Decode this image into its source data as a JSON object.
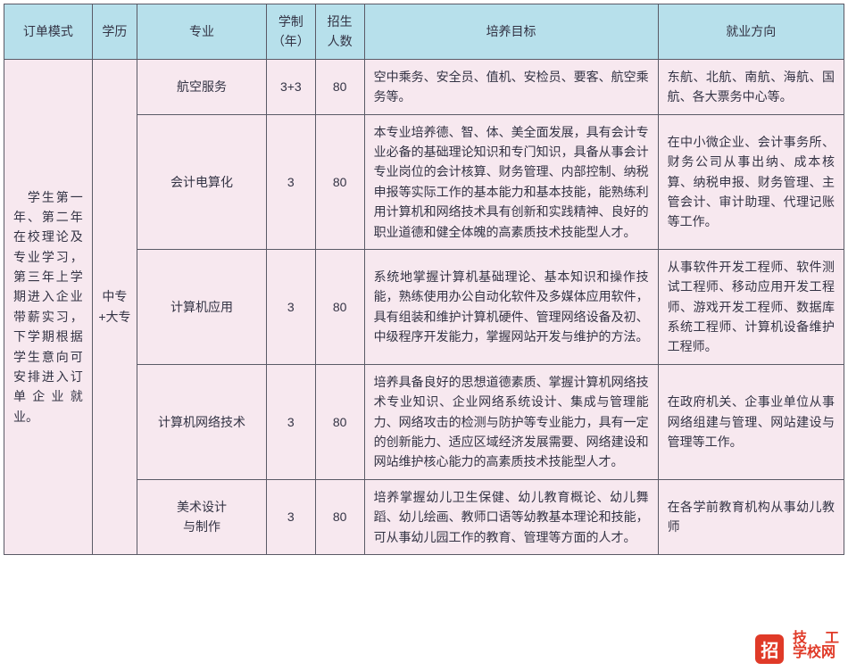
{
  "colors": {
    "header_bg": "#b7e0eb",
    "cell_bg": "#f7e8ef",
    "border": "#5a5a66",
    "text": "#333344",
    "watermark_red": "#e03a28"
  },
  "headers": {
    "mode": "订单模式",
    "edu": "学历",
    "major": "专业",
    "years": "学制\n（年）",
    "num": "招生\n人数",
    "goal": "培养目标",
    "career": "就业方向"
  },
  "mode_text": "　学生第一年、第二年在校理论及专业学习，第三年上学期进入企业带薪实习，下学期根据学生意向可安排进入订单企业就业。",
  "edu_text": "中专+大专",
  "rows": [
    {
      "major": "航空服务",
      "years": "3+3",
      "num": "80",
      "goal": "空中乘务、安全员、值机、安检员、要客、航空乘务等。",
      "career": "东航、北航、南航、海航、国航、各大票务中心等。"
    },
    {
      "major": "会计电算化",
      "years": "3",
      "num": "80",
      "goal": "本专业培养德、智、体、美全面发展，具有会计专业必备的基础理论知识和专门知识，具备从事会计专业岗位的会计核算、财务管理、内部控制、纳税申报等实际工作的基本能力和基本技能，能熟练利用计算机和网络技术具有创新和实践精神、良好的职业道德和健全体魄的高素质技术技能型人才。",
      "career": "在中小微企业、会计事务所、财务公司从事出纳、成本核算、纳税申报、财务管理、主管会计、审计助理、代理记账等工作。"
    },
    {
      "major": "计算机应用",
      "years": "3",
      "num": "80",
      "goal": "系统地掌握计算机基础理论、基本知识和操作技能，熟练使用办公自动化软件及多媒体应用软件，具有组装和维护计算机硬件、管理网络设备及初、中级程序开发能力，掌握网站开发与维护的方法。",
      "career": "从事软件开发工程师、软件测试工程师、移动应用开发工程师、游戏开发工程师、数据库系统工程师、计算机设备维护工程师。"
    },
    {
      "major": "计算机网络技术",
      "years": "3",
      "num": "80",
      "goal": "培养具备良好的思想道德素质、掌握计算机网络技术专业知识、企业网络系统设计、集成与管理能力、网络攻击的检测与防护等专业能力，具有一定的创新能力、适应区域经济发展需要、网络建设和网站维护核心能力的高素质技术技能型人才。",
      "career": "在政府机关、企事业单位从事网络组建与管理、网站建设与管理等工作。"
    },
    {
      "major": "美术设计\n与制作",
      "years": "3",
      "num": "80",
      "goal": "培养掌握幼儿卫生保健、幼儿教育概论、幼儿舞蹈、幼儿绘画、教师口语等幼教基本理论和技能，可从事幼儿园工作的教育、管理等方面的人才。",
      "career": "在各学前教育机构从事幼儿教师"
    }
  ],
  "watermark": {
    "badge": "招",
    "line1": "技　工",
    "line2": "学校网"
  }
}
